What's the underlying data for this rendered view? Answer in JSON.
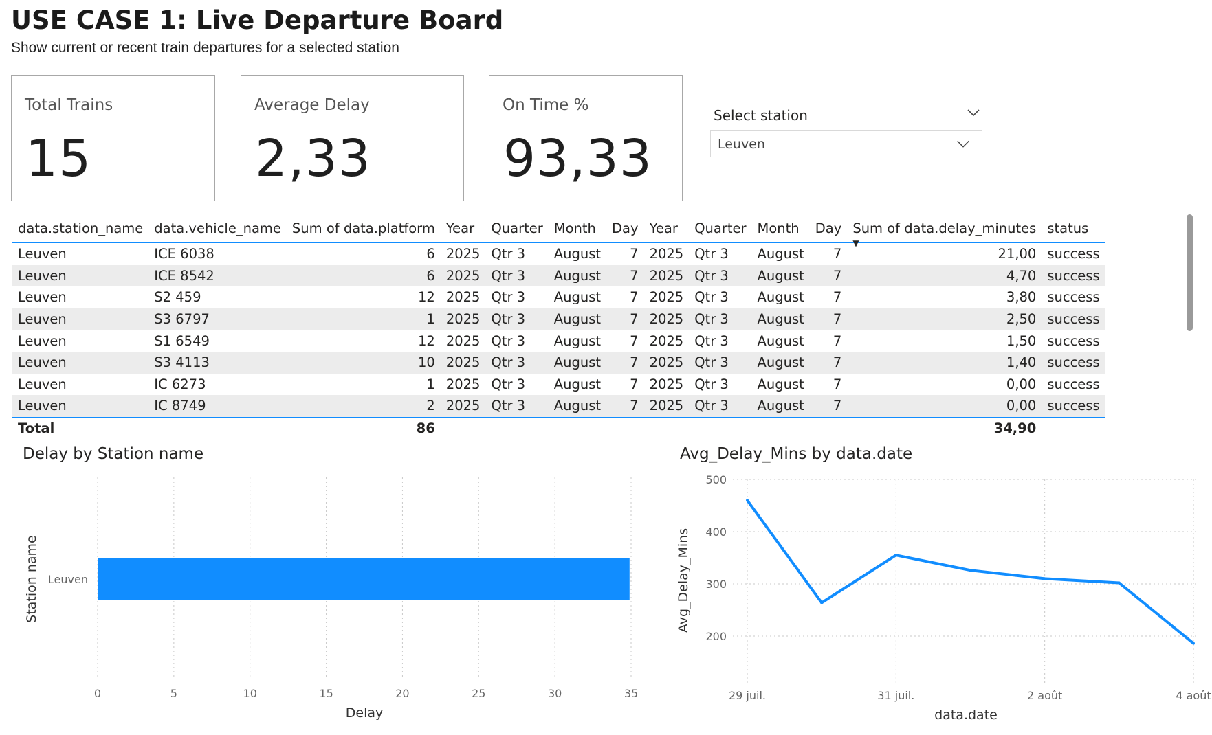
{
  "header": {
    "title": "USE CASE 1: Live Departure Board",
    "subtitle": "Show current or recent train departures for a selected station"
  },
  "cards": [
    {
      "label": "Total Trains",
      "value": "15"
    },
    {
      "label": "Average Delay",
      "value": "2,33"
    },
    {
      "label": "On Time %",
      "value": "93,33"
    }
  ],
  "slicer": {
    "title": "Select station",
    "selected": "Leuven",
    "icon": "chevron-down-icon"
  },
  "table": {
    "columns": [
      "data.station_name",
      "data.vehicle_name",
      "Sum of data.platform",
      "Year",
      "Quarter",
      "Month",
      "Day",
      "Year",
      "Quarter",
      "Month",
      "Day",
      "Sum of data.delay_minutes",
      "status"
    ],
    "rows": [
      [
        "Leuven",
        "ICE 6038",
        "6",
        "2025",
        "Qtr 3",
        "August",
        "7",
        "2025",
        "Qtr 3",
        "August",
        "7",
        "21,00",
        "success"
      ],
      [
        "Leuven",
        "ICE 8542",
        "6",
        "2025",
        "Qtr 3",
        "August",
        "7",
        "2025",
        "Qtr 3",
        "August",
        "7",
        "4,70",
        "success"
      ],
      [
        "Leuven",
        "S2 459",
        "12",
        "2025",
        "Qtr 3",
        "August",
        "7",
        "2025",
        "Qtr 3",
        "August",
        "7",
        "3,80",
        "success"
      ],
      [
        "Leuven",
        "S3 6797",
        "1",
        "2025",
        "Qtr 3",
        "August",
        "7",
        "2025",
        "Qtr 3",
        "August",
        "7",
        "2,50",
        "success"
      ],
      [
        "Leuven",
        "S1 6549",
        "12",
        "2025",
        "Qtr 3",
        "August",
        "7",
        "2025",
        "Qtr 3",
        "August",
        "7",
        "1,50",
        "success"
      ],
      [
        "Leuven",
        "S3 4113",
        "10",
        "2025",
        "Qtr 3",
        "August",
        "7",
        "2025",
        "Qtr 3",
        "August",
        "7",
        "1,40",
        "success"
      ],
      [
        "Leuven",
        "IC 6273",
        "1",
        "2025",
        "Qtr 3",
        "August",
        "7",
        "2025",
        "Qtr 3",
        "August",
        "7",
        "0,00",
        "success"
      ],
      [
        "Leuven",
        "IC 8749",
        "2",
        "2025",
        "Qtr 3",
        "August",
        "7",
        "2025",
        "Qtr 3",
        "August",
        "7",
        "0,00",
        "success"
      ]
    ],
    "total": {
      "label": "Total",
      "platform": "86",
      "delay": "34,90"
    },
    "sorted_column": "Sum of data.delay_minutes",
    "sort_direction": "descending"
  },
  "chart_data": [
    {
      "type": "bar",
      "orientation": "horizontal",
      "title": "Delay by Station name",
      "xlabel": "Delay",
      "ylabel": "Station name",
      "categories": [
        "Leuven"
      ],
      "values": [
        34.9
      ],
      "xlim": [
        0,
        35
      ],
      "xticks": [
        "0",
        "5",
        "10",
        "15",
        "20",
        "25",
        "30",
        "35"
      ],
      "grid": true,
      "color": "#118dff"
    },
    {
      "type": "line",
      "title": "Avg_Delay_Mins by data.date",
      "xlabel": "data.date",
      "ylabel": "Avg_Delay_Mins",
      "x": [
        "2025-07-29",
        "2025-07-30",
        "2025-07-31",
        "2025-08-01",
        "2025-08-02",
        "2025-08-03",
        "2025-08-04"
      ],
      "xticks": [
        "29 juil.",
        "31 juil.",
        "2 août",
        "4 août"
      ],
      "values": [
        460,
        264,
        355,
        326,
        310,
        302,
        186
      ],
      "ylim": [
        150,
        500
      ],
      "yticks": [
        "200",
        "300",
        "400",
        "500"
      ],
      "grid": true,
      "color": "#118dff"
    }
  ]
}
